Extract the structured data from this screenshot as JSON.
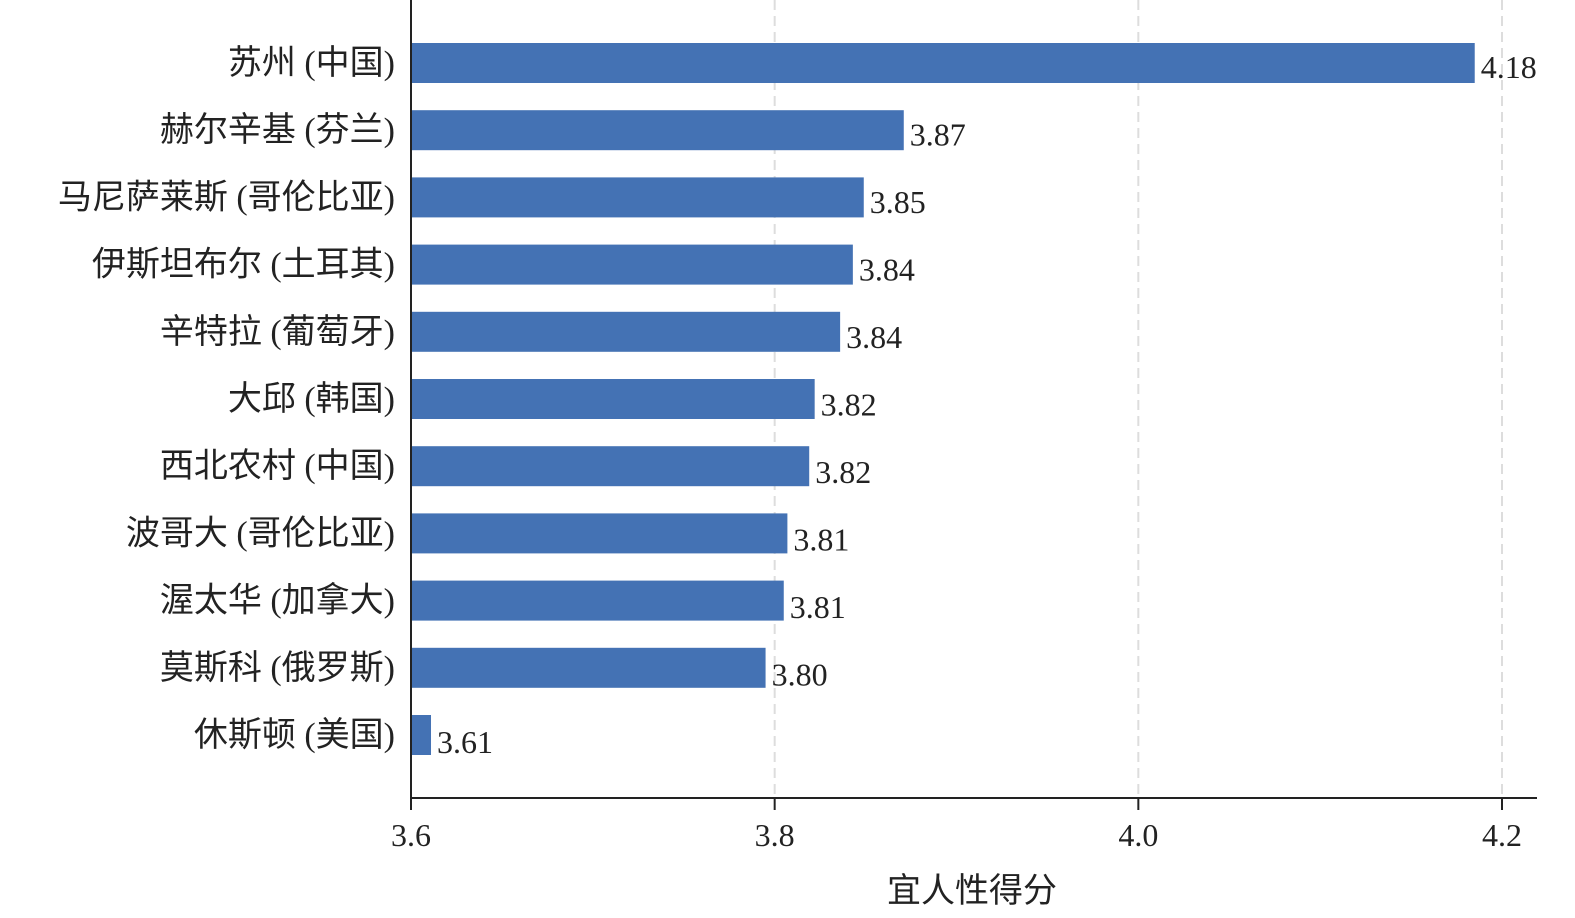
{
  "chart_data": {
    "type": "bar",
    "orientation": "horizontal",
    "title": "",
    "xlabel": "宜人性得分",
    "ylabel": "",
    "xlim": [
      3.6,
      4.2
    ],
    "xticks": [
      "3.6",
      "3.8",
      "4.0",
      "4.2"
    ],
    "grid": "vertical dashed",
    "bar_color": "#4472b4",
    "categories": [
      "苏州 (中国)",
      "赫尔辛基 (芬兰)",
      "马尼萨莱斯 (哥伦比亚)",
      "伊斯坦布尔 (土耳其)",
      "辛特拉 (葡萄牙)",
      "大邱 (韩国)",
      "西北农村 (中国)",
      "波哥大 (哥伦比亚)",
      "渥太华 (加拿大)",
      "莫斯科 (俄罗斯)",
      "休斯顿 (美国)"
    ],
    "values": [
      4.185,
      3.871,
      3.849,
      3.843,
      3.836,
      3.822,
      3.819,
      3.807,
      3.805,
      3.795,
      3.611
    ],
    "value_labels": [
      "4.18",
      "3.87",
      "3.85",
      "3.84",
      "3.84",
      "3.82",
      "3.82",
      "3.81",
      "3.81",
      "3.80",
      "3.61"
    ]
  }
}
